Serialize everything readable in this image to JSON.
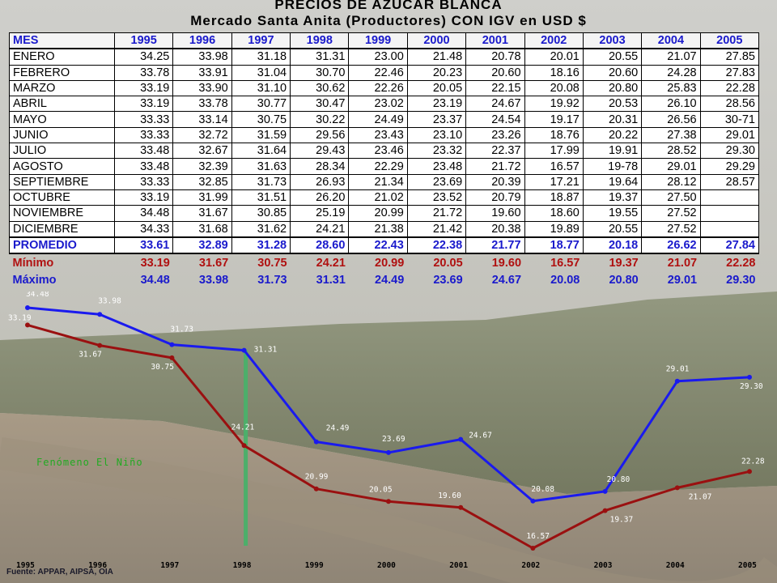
{
  "title": "PRECIOS DE AZUCAR BLANCA",
  "subtitle": "Mercado Santa Anita (Productores) CON  IGV en USD $",
  "table": {
    "header": [
      "MES",
      "1995",
      "1996",
      "1997",
      "1998",
      "1999",
      "2000",
      "2001",
      "2002",
      "2003",
      "2004",
      "2005"
    ],
    "rows": [
      [
        "ENERO",
        "34.25",
        "33.98",
        "31.18",
        "31.31",
        "23.00",
        "21.48",
        "20.78",
        "20.01",
        "20.55",
        "21.07",
        "27.85"
      ],
      [
        "FEBRERO",
        "33.78",
        "33.91",
        "31.04",
        "30.70",
        "22.46",
        "20.23",
        "20.60",
        "18.16",
        "20.60",
        "24.28",
        "27.83"
      ],
      [
        "MARZO",
        "33.19",
        "33.90",
        "31.10",
        "30.62",
        "22.26",
        "20.05",
        "22.15",
        "20.08",
        "20.80",
        "25.83",
        "22.28"
      ],
      [
        "ABRIL",
        "33.19",
        "33.78",
        "30.77",
        "30.47",
        "23.02",
        "23.19",
        "24.67",
        "19.92",
        "20.53",
        "26.10",
        "28.56"
      ],
      [
        "MAYO",
        "33.33",
        "33.14",
        "30.75",
        "30.22",
        "24.49",
        "23.37",
        "24.54",
        "19.17",
        "20.31",
        "26.56",
        "30-71"
      ],
      [
        "JUNIO",
        "33.33",
        "32.72",
        "31.59",
        "29.56",
        "23.43",
        "23.10",
        "23.26",
        "18.76",
        "20.22",
        "27.38",
        "29.01"
      ],
      [
        "JULIO",
        "33.48",
        "32.67",
        "31.64",
        "29.43",
        "23.46",
        "23.32",
        "22.37",
        "17.99",
        "19.91",
        "28.52",
        "29.30"
      ],
      [
        "AGOSTO",
        "33.48",
        "32.39",
        "31.63",
        "28.34",
        "22.29",
        "23.48",
        "21.72",
        "16.57",
        "19-78",
        "29.01",
        "29.29"
      ],
      [
        "SEPTIEMBRE",
        "33.33",
        "32.85",
        "31.73",
        "26.93",
        "21.34",
        "23.69",
        "20.39",
        "17.21",
        "19.64",
        "28.12",
        "28.57"
      ],
      [
        "OCTUBRE",
        "33.19",
        "31.99",
        "31.51",
        "26.20",
        "21.02",
        "23.52",
        "20.79",
        "18.87",
        "19.37",
        "27.50",
        ""
      ],
      [
        "NOVIEMBRE",
        "34.48",
        "31.67",
        "30.85",
        "25.19",
        "20.99",
        "21.72",
        "19.60",
        "18.60",
        "19.55",
        "27.52",
        ""
      ],
      [
        "DICIEMBRE",
        "34.33",
        "31.68",
        "31.62",
        "24.21",
        "21.38",
        "21.42",
        "20.38",
        "19.89",
        "20.55",
        "27.52",
        ""
      ]
    ],
    "promedio": [
      "PROMEDIO",
      "33.61",
      "32.89",
      "31.28",
      "28.60",
      "22.43",
      "22.38",
      "21.77",
      "18.77",
      "20.18",
      "26.62",
      "27.84"
    ],
    "minimo": [
      "Mínimo",
      "33.19",
      "31.67",
      "30.75",
      "24.21",
      "20.99",
      "20.05",
      "19.60",
      "16.57",
      "19.37",
      "21.07",
      "22.28"
    ],
    "maximo": [
      "Máximo",
      "34.48",
      "33.98",
      "31.73",
      "31.31",
      "24.49",
      "23.69",
      "24.67",
      "20.08",
      "20.80",
      "29.01",
      "29.30"
    ]
  },
  "chart_data": {
    "type": "line",
    "categories": [
      "1995",
      "1996",
      "1997",
      "1998",
      "1999",
      "2000",
      "2001",
      "2002",
      "2003",
      "2004",
      "2005"
    ],
    "series": [
      {
        "name": "Máximo",
        "color": "#1a1aee",
        "values": [
          34.48,
          33.98,
          31.73,
          31.31,
          24.49,
          23.69,
          24.67,
          20.08,
          20.8,
          29.01,
          29.3
        ],
        "labels": [
          "34.48",
          "33.98",
          "31.73",
          "31.31",
          "24.49",
          "23.69",
          "24.67",
          "20.08",
          "20.80",
          "29.01",
          "29.30"
        ]
      },
      {
        "name": "Mínimo",
        "color": "#9a1010",
        "values": [
          33.19,
          31.67,
          30.75,
          24.21,
          20.99,
          20.05,
          19.6,
          16.57,
          19.37,
          21.07,
          22.28
        ],
        "labels": [
          "33.19",
          "31.67",
          "30.75",
          "24.21",
          "20.99",
          "20.05",
          "19.60",
          "16.57",
          "19.37",
          "21.07",
          "22.28"
        ]
      }
    ],
    "annotation": {
      "text": "Fenómeno El Niño",
      "year": "1998",
      "color": "#22aa22",
      "bar_color": "#4caf6a"
    },
    "source": "Fuente:  APPAR, AIPSA, OIA"
  }
}
